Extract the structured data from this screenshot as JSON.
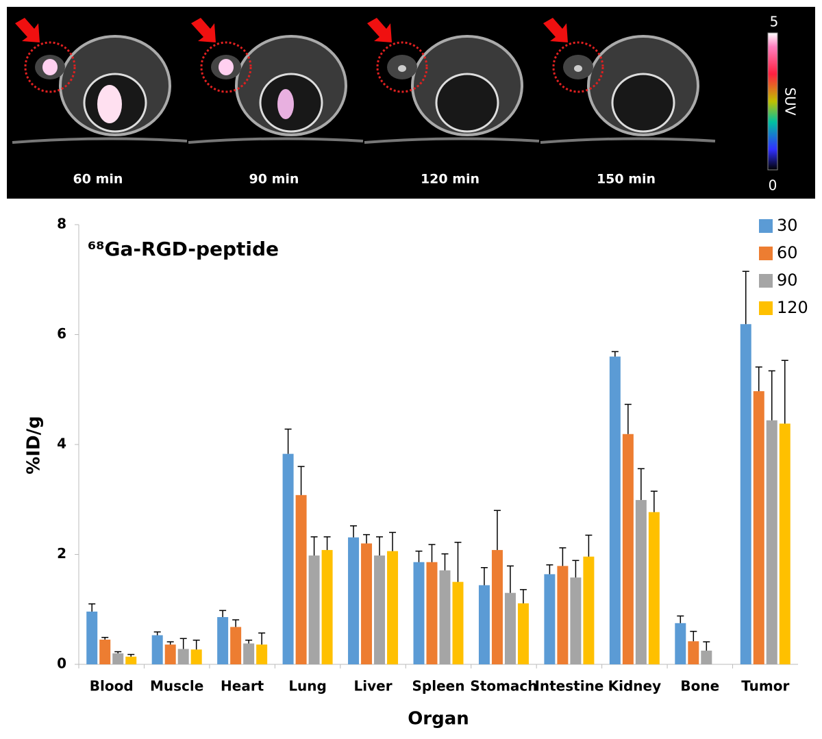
{
  "image_panel": {
    "labels": [
      "60 min",
      "90 min",
      "120 min",
      "150 min"
    ],
    "colorbar": {
      "label": "SUV",
      "ticks": [
        0,
        5
      ]
    }
  },
  "chart_data": {
    "type": "bar",
    "title": "⁶⁸Ga-RGD-peptide",
    "xlabel": "Organ",
    "ylabel": "%ID/g",
    "categories": [
      "Blood",
      "Muscle",
      "Heart",
      "Lung",
      "Liver",
      "Spleen",
      "Stomach",
      "Intestine",
      "Kidney",
      "Bone",
      "Tumor"
    ],
    "series": [
      {
        "name": "30",
        "color": "#5b9bd5",
        "values": [
          0.96,
          0.53,
          0.86,
          3.83,
          2.31,
          1.86,
          1.44,
          1.64,
          5.6,
          0.75,
          6.19
        ],
        "errors": [
          0.14,
          0.06,
          0.12,
          0.45,
          0.21,
          0.2,
          0.32,
          0.17,
          0.09,
          0.13,
          0.96
        ]
      },
      {
        "name": "60",
        "color": "#ed7d31",
        "values": [
          0.45,
          0.36,
          0.68,
          3.08,
          2.2,
          1.86,
          2.08,
          1.79,
          4.19,
          0.42,
          4.97
        ],
        "errors": [
          0.04,
          0.05,
          0.13,
          0.52,
          0.16,
          0.32,
          0.72,
          0.33,
          0.54,
          0.18,
          0.44
        ]
      },
      {
        "name": "90",
        "color": "#a5a5a5",
        "values": [
          0.2,
          0.28,
          0.38,
          1.98,
          1.98,
          1.71,
          1.3,
          1.58,
          2.99,
          0.25,
          4.44
        ],
        "errors": [
          0.03,
          0.19,
          0.06,
          0.34,
          0.34,
          0.3,
          0.49,
          0.31,
          0.57,
          0.16,
          0.9
        ]
      },
      {
        "name": "120",
        "color": "#ffc000",
        "values": [
          0.14,
          0.27,
          0.36,
          2.08,
          2.06,
          1.5,
          1.11,
          1.96,
          2.77,
          null,
          4.38
        ],
        "errors": [
          0.04,
          0.17,
          0.21,
          0.24,
          0.34,
          0.72,
          0.25,
          0.39,
          0.38,
          null,
          1.15
        ]
      }
    ],
    "ylim": [
      0,
      8
    ],
    "yticks": [
      0,
      2,
      4,
      6,
      8
    ],
    "grid": false,
    "legend": "top-right"
  }
}
